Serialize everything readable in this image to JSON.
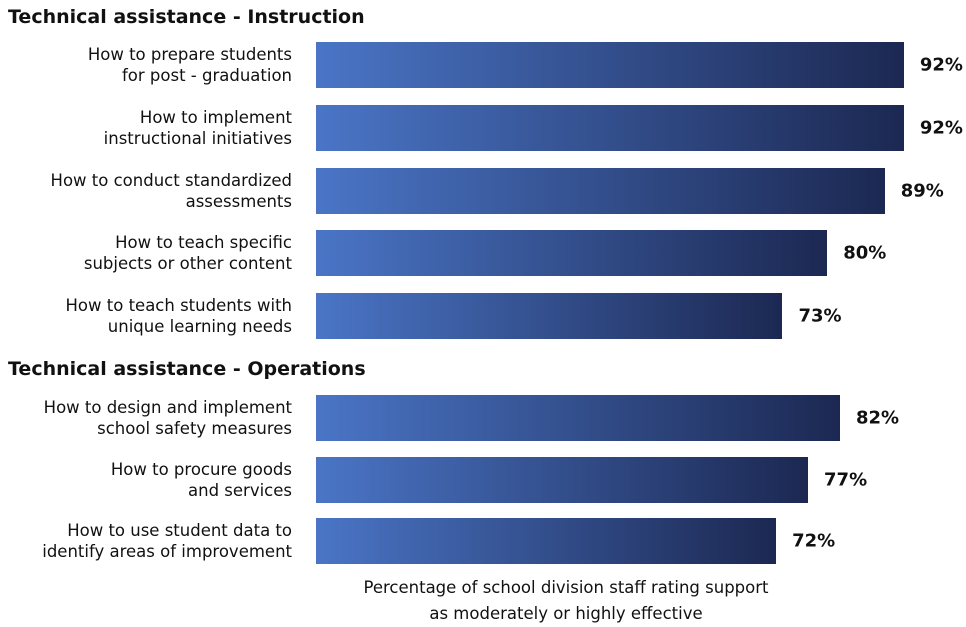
{
  "chart_data": {
    "type": "bar",
    "orientation": "horizontal",
    "xlim": [
      0,
      100
    ],
    "gradient": [
      "#4a75c6",
      "#1c2852"
    ],
    "x_label": "Percentage of school division staff rating support\nas moderately or highly effective",
    "groups": [
      {
        "title": "Technical assistance - Instruction",
        "categories": [
          "How to prepare students\nfor post - graduation",
          "How to implement\ninstructional initiatives",
          "How to conduct standardized\nassessments",
          "How to teach specific\nsubjects or other content",
          "How to teach students with\nunique learning needs"
        ],
        "values": [
          92,
          92,
          89,
          80,
          73
        ],
        "value_labels": [
          "92%",
          "92%",
          "89%",
          "80%",
          "73%"
        ]
      },
      {
        "title": "Technical assistance - Operations",
        "categories": [
          "How to design and implement\nschool safety measures",
          "How to procure goods\nand services",
          "How to use student data to\nidentify areas of improvement"
        ],
        "values": [
          82,
          77,
          72
        ],
        "value_labels": [
          "82%",
          "77%",
          "72%"
        ]
      }
    ]
  }
}
